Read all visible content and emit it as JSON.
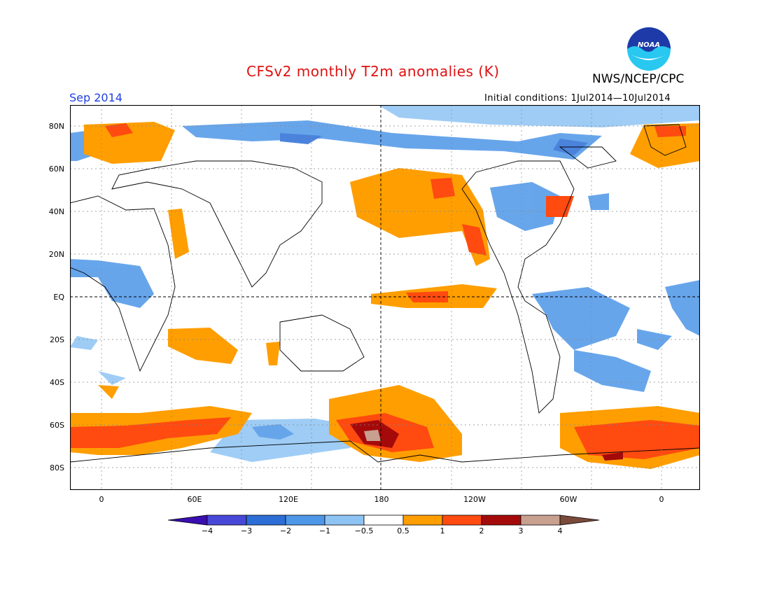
{
  "title": "CFSv2 monthly T2m anomalies (K)",
  "organization": "NWS/NCEP/CPC",
  "logo_text": "NOAA",
  "valid_month": "Sep 2014",
  "initial_conditions": "Initial conditions: 1Jul2014—10Jul2014",
  "latitude_labels": [
    "80N",
    "60N",
    "40N",
    "20N",
    "EQ",
    "20S",
    "40S",
    "60S",
    "80S"
  ],
  "longitude_labels": [
    "0",
    "60E",
    "120E",
    "180",
    "120W",
    "60W",
    "0"
  ],
  "legend": {
    "tick_labels": [
      "−4",
      "−3",
      "−2",
      "−1",
      "−0.5",
      "0.5",
      "1",
      "2",
      "3",
      "4"
    ],
    "colors": [
      "#3a0eb0",
      "#4848d8",
      "#2c6ed6",
      "#4d96e8",
      "#8ec4f4",
      "#ffffff",
      "#ff9e00",
      "#ff4a10",
      "#a50a0a",
      "#c8a090",
      "#7a4a3a"
    ]
  },
  "colors": {
    "title": "#e01010",
    "month": "#2040e0",
    "noaa_blue": "#1e3aa8",
    "noaa_cyan": "#28c8f0"
  }
}
